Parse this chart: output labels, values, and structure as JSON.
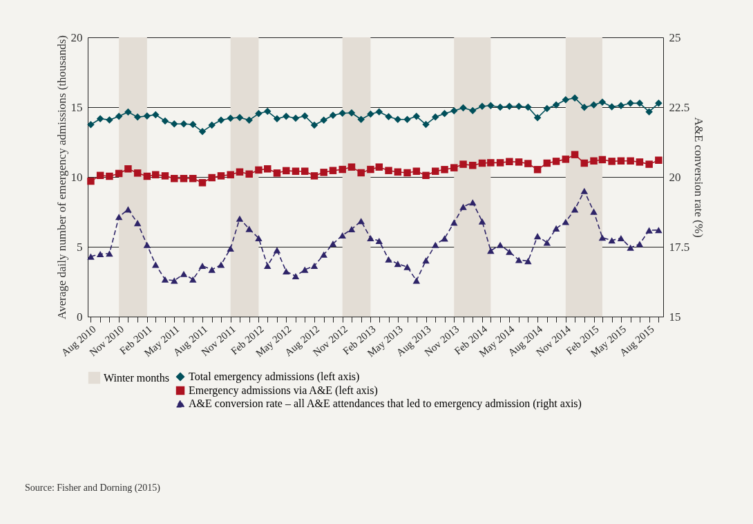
{
  "chart_data": {
    "type": "line",
    "ylabel": "Average daily number of emergency admissions (thousands)",
    "y2label": "A&E conversion rate (%)",
    "annotations": [
      "Source: Fisher and Dorning (2015)"
    ],
    "x": [
      "2010-08",
      "2010-09",
      "2010-10",
      "2010-11",
      "2010-12",
      "2011-01",
      "2011-02",
      "2011-03",
      "2011-04",
      "2011-05",
      "2011-06",
      "2011-07",
      "2011-08",
      "2011-09",
      "2011-10",
      "2011-11",
      "2011-12",
      "2012-01",
      "2012-02",
      "2012-03",
      "2012-04",
      "2012-05",
      "2012-06",
      "2012-07",
      "2012-08",
      "2012-09",
      "2012-10",
      "2012-11",
      "2012-12",
      "2013-01",
      "2013-02",
      "2013-03",
      "2013-04",
      "2013-05",
      "2013-06",
      "2013-07",
      "2013-08",
      "2013-09",
      "2013-10",
      "2013-11",
      "2013-12",
      "2014-01",
      "2014-02",
      "2014-03",
      "2014-04",
      "2014-05",
      "2014-06",
      "2014-07",
      "2014-08",
      "2014-09",
      "2014-10",
      "2014-11",
      "2014-12",
      "2015-01",
      "2015-02",
      "2015-03",
      "2015-04",
      "2015-05",
      "2015-06",
      "2015-07",
      "2015-08",
      "2015-09"
    ],
    "xlim": [
      "2010-07-22",
      "2015-09-16"
    ],
    "xticks": [
      {
        "value": "2010-08",
        "label": "Aug 2010"
      },
      {
        "value": "2010-09",
        "label": null
      },
      {
        "value": "2010-10",
        "label": null
      },
      {
        "value": "2010-11",
        "label": "Nov 2010"
      },
      {
        "value": "2010-12",
        "label": null
      },
      {
        "value": "2011-01",
        "label": null
      },
      {
        "value": "2011-02",
        "label": "Feb 2011"
      },
      {
        "value": "2011-03",
        "label": null
      },
      {
        "value": "2011-04",
        "label": null
      },
      {
        "value": "2011-05",
        "label": "May 2011"
      },
      {
        "value": "2011-06",
        "label": null
      },
      {
        "value": "2011-07",
        "label": null
      },
      {
        "value": "2011-08",
        "label": "Aug 2011"
      },
      {
        "value": "2011-09",
        "label": null
      },
      {
        "value": "2011-10",
        "label": null
      },
      {
        "value": "2011-11",
        "label": "Nov 2011"
      },
      {
        "value": "2011-12",
        "label": null
      },
      {
        "value": "2012-01",
        "label": null
      },
      {
        "value": "2012-02",
        "label": "Feb 2012"
      },
      {
        "value": "2012-03",
        "label": null
      },
      {
        "value": "2012-04",
        "label": null
      },
      {
        "value": "2012-05",
        "label": "May 2012"
      },
      {
        "value": "2012-06",
        "label": null
      },
      {
        "value": "2012-07",
        "label": null
      },
      {
        "value": "2012-08",
        "label": "Aug 2012"
      },
      {
        "value": "2012-09",
        "label": null
      },
      {
        "value": "2012-10",
        "label": null
      },
      {
        "value": "2012-11",
        "label": "Nov 2012"
      },
      {
        "value": "2012-12",
        "label": null
      },
      {
        "value": "2013-01",
        "label": null
      },
      {
        "value": "2013-02",
        "label": "Feb 2013"
      },
      {
        "value": "2013-03",
        "label": null
      },
      {
        "value": "2013-04",
        "label": null
      },
      {
        "value": "2013-05",
        "label": "May 2013"
      },
      {
        "value": "2013-06",
        "label": null
      },
      {
        "value": "2013-07",
        "label": null
      },
      {
        "value": "2013-08",
        "label": "Aug 2013"
      },
      {
        "value": "2013-09",
        "label": null
      },
      {
        "value": "2013-10",
        "label": null
      },
      {
        "value": "2013-11",
        "label": "Nov 2013"
      },
      {
        "value": "2013-12",
        "label": null
      },
      {
        "value": "2014-01",
        "label": null
      },
      {
        "value": "2014-02",
        "label": "Feb 2014"
      },
      {
        "value": "2014-03",
        "label": null
      },
      {
        "value": "2014-04",
        "label": null
      },
      {
        "value": "2014-05",
        "label": "May 2014"
      },
      {
        "value": "2014-06",
        "label": null
      },
      {
        "value": "2014-07",
        "label": null
      },
      {
        "value": "2014-08",
        "label": "Aug 2014"
      },
      {
        "value": "2014-09",
        "label": null
      },
      {
        "value": "2014-10",
        "label": null
      },
      {
        "value": "2014-11",
        "label": "Nov 2014"
      },
      {
        "value": "2014-12",
        "label": null
      },
      {
        "value": "2015-01",
        "label": null
      },
      {
        "value": "2015-02",
        "label": "Feb 2015"
      },
      {
        "value": "2015-03",
        "label": null
      },
      {
        "value": "2015-04",
        "label": null
      },
      {
        "value": "2015-05",
        "label": "May 2015"
      },
      {
        "value": "2015-06",
        "label": null
      },
      {
        "value": "2015-07",
        "label": null
      },
      {
        "value": "2015-08",
        "label": "Aug 2015"
      },
      {
        "value": "2015-09",
        "label": null
      }
    ],
    "ylim": [
      0,
      20
    ],
    "yticks": [
      0,
      5,
      10,
      15,
      20
    ],
    "y2lim": [
      15,
      25
    ],
    "y2ticks": [
      15,
      17.5,
      20,
      22.5,
      25
    ],
    "grid": "y",
    "legend": "bottom",
    "bands": [
      {
        "axis": "x",
        "from": "2010-11",
        "to": "2011-02",
        "label": "Winter months",
        "color": "#e3ddd5"
      },
      {
        "axis": "x",
        "from": "2011-11",
        "to": "2012-02",
        "color": "#e3ddd5"
      },
      {
        "axis": "x",
        "from": "2012-11",
        "to": "2013-02",
        "color": "#e3ddd5"
      },
      {
        "axis": "x",
        "from": "2013-11",
        "to": "2014-03",
        "color": "#e3ddd5"
      },
      {
        "axis": "x",
        "from": "2014-11",
        "to": "2015-03",
        "color": "#e3ddd5"
      }
    ],
    "series": [
      {
        "name": "Total emergency admissions (left axis)",
        "color": "#004f5a",
        "marker": "diamond",
        "line_style": "solid",
        "values": [
          13.75,
          14.17,
          14.09,
          14.34,
          14.65,
          14.29,
          14.37,
          14.46,
          14.01,
          13.8,
          13.8,
          13.76,
          13.25,
          13.71,
          14.07,
          14.21,
          14.26,
          14.07,
          14.54,
          14.7,
          14.17,
          14.34,
          14.21,
          14.37,
          13.71,
          14.07,
          14.42,
          14.57,
          14.59,
          14.12,
          14.5,
          14.67,
          14.32,
          14.12,
          14.12,
          14.34,
          13.76,
          14.29,
          14.54,
          14.74,
          14.95,
          14.75,
          15.06,
          15.11,
          15.0,
          15.06,
          15.06,
          15.0,
          14.24,
          14.9,
          15.16,
          15.53,
          15.66,
          14.99,
          15.16,
          15.36,
          15.03,
          15.11,
          15.28,
          15.28,
          14.67,
          15.28
        ]
      },
      {
        "name": "Emergency admissions via A&E (left axis)",
        "color": "#ad1220",
        "marker": "square",
        "line_style": "solid",
        "values": [
          9.7,
          10.11,
          10.05,
          10.25,
          10.58,
          10.28,
          10.05,
          10.16,
          10.08,
          9.89,
          9.89,
          9.89,
          9.59,
          9.95,
          10.08,
          10.16,
          10.36,
          10.21,
          10.5,
          10.58,
          10.28,
          10.45,
          10.41,
          10.41,
          10.08,
          10.33,
          10.46,
          10.54,
          10.71,
          10.3,
          10.54,
          10.71,
          10.46,
          10.36,
          10.3,
          10.41,
          10.11,
          10.41,
          10.53,
          10.66,
          10.91,
          10.83,
          10.99,
          11.02,
          11.02,
          11.1,
          11.07,
          10.96,
          10.53,
          10.99,
          11.12,
          11.27,
          11.6,
          10.99,
          11.15,
          11.24,
          11.12,
          11.15,
          11.15,
          11.07,
          10.91,
          11.2
        ]
      },
      {
        "name": "A&E conversion rate – all A&E attendances that led to emergency admission (right axis)",
        "color": "#2e2468",
        "marker": "triangle",
        "line_style": "dashed",
        "axis": "y2",
        "values": [
          17.15,
          17.24,
          17.26,
          18.57,
          18.84,
          18.35,
          17.57,
          16.86,
          16.33,
          16.29,
          16.53,
          16.33,
          16.82,
          16.68,
          16.86,
          17.44,
          18.51,
          18.14,
          17.81,
          16.82,
          17.38,
          16.62,
          16.45,
          16.68,
          16.82,
          17.22,
          17.61,
          17.91,
          18.13,
          18.42,
          17.81,
          17.71,
          17.05,
          16.89,
          16.78,
          16.29,
          17.01,
          17.57,
          17.8,
          18.37,
          18.93,
          19.09,
          18.41,
          17.36,
          17.57,
          17.32,
          17.03,
          16.99,
          17.88,
          17.65,
          18.16,
          18.39,
          18.84,
          19.5,
          18.76,
          17.83,
          17.73,
          17.81,
          17.47,
          17.6,
          18.09,
          18.1
        ]
      }
    ]
  }
}
